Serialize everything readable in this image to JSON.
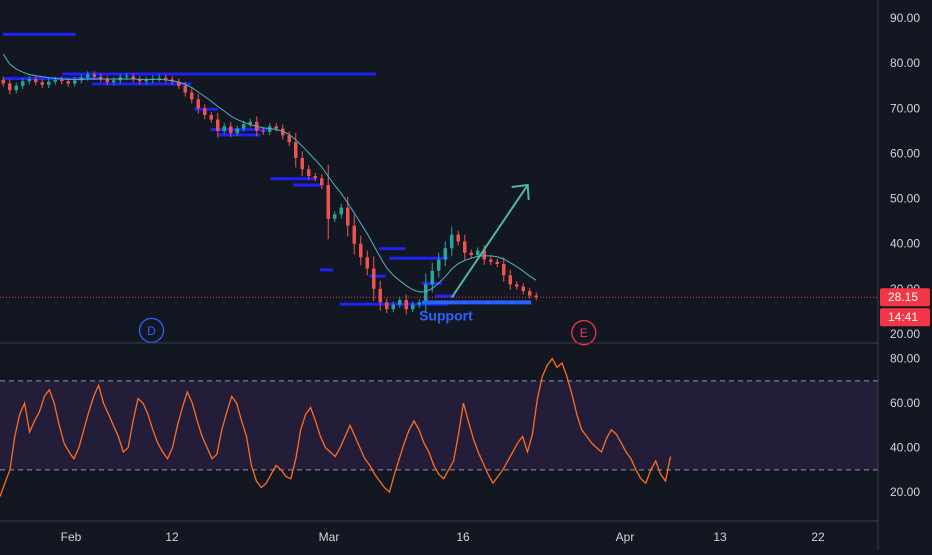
{
  "chart_data": [
    {
      "type": "candlestick",
      "title": "",
      "xlabel": "",
      "ylabel": "",
      "ylim": [
        18,
        94
      ],
      "y_ticks": [
        20,
        30,
        40,
        50,
        60,
        70,
        80,
        90
      ],
      "y_tick_labels": [
        "20.00",
        "30.00",
        "40.00",
        "50.00",
        "60.00",
        "70.00",
        "80.00",
        "90.00"
      ],
      "x_tick_labels": [
        "Feb",
        "12",
        "Mar",
        "16",
        "Apr",
        "13",
        "22"
      ],
      "grid": false,
      "last_price": 28.15,
      "last_price_label": "28.15",
      "countdown_label": "14:41",
      "moving_average": "ma",
      "close": [
        75.5,
        74.0,
        75.0,
        76.0,
        76.5,
        75.8,
        75.2,
        75.9,
        76.3,
        76.0,
        75.5,
        76.2,
        76.8,
        77.5,
        77.0,
        76.5,
        75.8,
        76.2,
        76.9,
        77.1,
        76.5,
        76.0,
        76.3,
        76.6,
        76.8,
        76.4,
        75.9,
        75.0,
        73.5,
        72.0,
        70.0,
        68.5,
        67.5,
        65.0,
        66.0,
        64.5,
        65.5,
        66.5,
        67.0,
        65.0,
        64.8,
        66.0,
        65.5,
        64.0,
        62.5,
        59.0,
        56.5,
        55.0,
        54.5,
        53.0,
        45.5,
        46.5,
        48.0,
        44.0,
        40.0,
        37.0,
        34.5,
        30.0,
        27.0,
        25.5,
        26.5,
        27.5,
        25.5,
        26.5,
        27.0,
        31.0,
        34.0,
        36.5,
        39.0,
        42.0,
        40.5,
        38.0,
        37.5,
        38.5,
        36.5,
        36.0,
        35.5,
        33.0,
        31.0,
        30.5,
        29.5,
        28.5,
        28.15
      ],
      "ma": [
        82.0,
        79.8,
        78.7,
        78.0,
        77.5,
        77.2,
        77.0,
        76.8,
        76.6,
        76.5,
        76.4,
        76.4,
        76.4,
        76.5,
        76.5,
        76.5,
        76.5,
        76.5,
        76.5,
        76.5,
        76.5,
        76.4,
        76.4,
        76.4,
        76.4,
        76.3,
        76.1,
        75.8,
        75.3,
        74.6,
        73.6,
        72.6,
        71.6,
        70.4,
        69.4,
        68.3,
        67.5,
        66.9,
        66.4,
        66.0,
        65.7,
        65.5,
        65.3,
        64.9,
        64.2,
        63.0,
        61.6,
        60.1,
        58.6,
        57.0,
        54.9,
        52.9,
        51.1,
        49.0,
        46.8,
        44.5,
        42.2,
        39.6,
        37.0,
        34.6,
        33.0,
        31.8,
        30.7,
        29.8,
        29.3,
        29.4,
        30.1,
        31.3,
        32.7,
        34.4,
        35.6,
        36.3,
        36.8,
        37.2,
        37.3,
        37.3,
        37.1,
        36.6,
        35.8,
        34.9,
        33.9,
        32.8,
        31.9
      ],
      "levels": [
        {
          "value": 86.4,
          "from": 0,
          "to": 22
        },
        {
          "value": 77.6,
          "from": 18,
          "to": 113
        },
        {
          "value": 76.6,
          "from": 0,
          "to": 30
        },
        {
          "value": 75.4,
          "from": 27,
          "to": 57
        },
        {
          "value": 69.8,
          "from": 58,
          "to": 65
        },
        {
          "value": 65.3,
          "from": 63,
          "to": 80
        },
        {
          "value": 64.1,
          "from": 65,
          "to": 78
        },
        {
          "value": 54.4,
          "from": 81,
          "to": 95
        },
        {
          "value": 53.0,
          "from": 88,
          "to": 97
        },
        {
          "value": 34.2,
          "from": 96,
          "to": 100
        },
        {
          "value": 26.6,
          "from": 102,
          "to": 135
        },
        {
          "value": 32.8,
          "from": 111,
          "to": 116
        },
        {
          "value": 38.9,
          "from": 114,
          "to": 122
        },
        {
          "value": 36.8,
          "from": 117,
          "to": 135
        },
        {
          "value": 31.2,
          "from": 127,
          "to": 133
        },
        {
          "value": 28.4,
          "from": 131,
          "to": 137
        }
      ],
      "support": {
        "value": 27.0,
        "from": 127,
        "to": 160,
        "label": "Support"
      },
      "projection": {
        "from": [
          136,
          28.1
        ],
        "to": [
          159,
          53.0
        ]
      },
      "markers": [
        {
          "label": "D",
          "x": 45,
          "y": 20.8
        },
        {
          "label": "E",
          "x": 176,
          "y": 20.3
        }
      ]
    },
    {
      "type": "line",
      "title": "",
      "xlabel": "",
      "ylabel": "",
      "ylim": [
        7,
        87
      ],
      "y_ticks": [
        20,
        40,
        60,
        80
      ],
      "y_tick_labels": [
        "20.00",
        "40.00",
        "60.00",
        "80.00"
      ],
      "bands": {
        "upper": 70,
        "lower": 30
      },
      "values": [
        18,
        24,
        30,
        45,
        55,
        60,
        47,
        52,
        56,
        63,
        66,
        60,
        50,
        42,
        38,
        35,
        40,
        48,
        56,
        63,
        68,
        60,
        55,
        50,
        45,
        38,
        40,
        52,
        62,
        60,
        55,
        48,
        42,
        38,
        35,
        40,
        50,
        58,
        65,
        60,
        52,
        45,
        40,
        35,
        37,
        48,
        56,
        63,
        60,
        52,
        45,
        32,
        25,
        22,
        24,
        28,
        32,
        30,
        27,
        26,
        35,
        48,
        55,
        58,
        52,
        45,
        40,
        38,
        36,
        40,
        45,
        50,
        45,
        40,
        35,
        32,
        28,
        25,
        22,
        20,
        28,
        35,
        42,
        48,
        52,
        48,
        42,
        38,
        32,
        28,
        26,
        30,
        34,
        46,
        60,
        52,
        44,
        38,
        33,
        28,
        24,
        27,
        30,
        34,
        38,
        42,
        45,
        38,
        46,
        62,
        72,
        77,
        80,
        76,
        78,
        72,
        64,
        55,
        48,
        45,
        42,
        40,
        38,
        44,
        48,
        46,
        42,
        38,
        35,
        30,
        26,
        24,
        30,
        34,
        28,
        25,
        36
      ]
    }
  ]
}
